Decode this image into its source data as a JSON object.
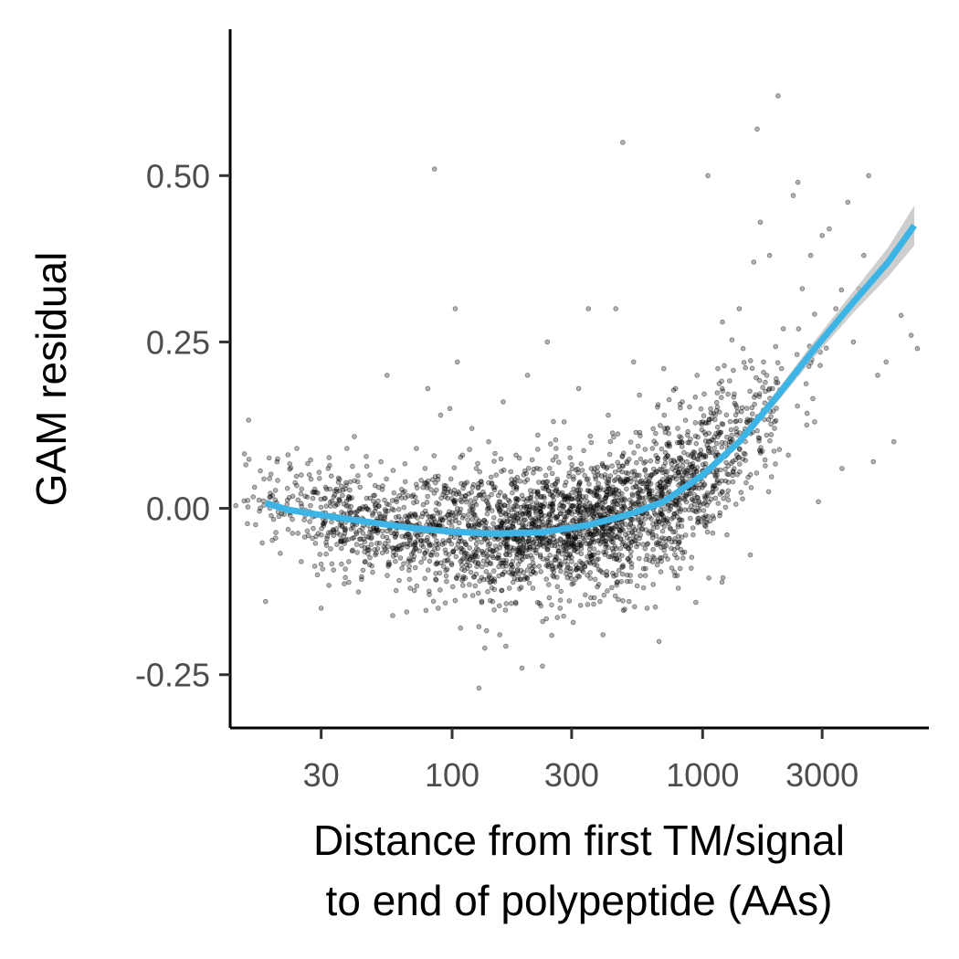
{
  "chart_data": {
    "type": "scatter",
    "title": "",
    "xlabel_line1": "Distance from first TM/signal",
    "xlabel_line2": "to end of polypeptide (AAs)",
    "ylabel": "GAM residual",
    "x_scale": "log10",
    "xlim": [
      13,
      8000
    ],
    "ylim": [
      -0.33,
      0.72
    ],
    "x_ticks": [
      30,
      100,
      300,
      1000,
      3000
    ],
    "x_tick_labels": [
      "30",
      "100",
      "300",
      "1000",
      "3000"
    ],
    "y_ticks": [
      -0.25,
      0,
      0.25,
      0.5
    ],
    "y_tick_labels": [
      "-0.25",
      "0.00",
      "0.25",
      "0.50"
    ],
    "grid": false,
    "legend": "none",
    "point_color": "#000000",
    "point_opacity": 0.3,
    "smooth_color": "#3cb4e5",
    "ribbon_color": "#bdbdbd",
    "points": [
      [
        18,
        -0.14
      ],
      [
        20,
        0.07
      ],
      [
        22,
        0.03
      ],
      [
        24,
        0.09
      ],
      [
        25,
        0.05
      ],
      [
        27,
        -0.02
      ],
      [
        29,
        -0.1
      ],
      [
        30,
        -0.15
      ],
      [
        32,
        0.06
      ],
      [
        34,
        0.02
      ],
      [
        36,
        -0.05
      ],
      [
        38,
        0.09
      ],
      [
        40,
        -0.02
      ],
      [
        42,
        0.04
      ],
      [
        45,
        -0.08
      ],
      [
        47,
        0.05
      ],
      [
        50,
        -0.03
      ],
      [
        52,
        0.07
      ],
      [
        55,
        0.2
      ],
      [
        58,
        -0.06
      ],
      [
        60,
        0.01
      ],
      [
        63,
        -0.09
      ],
      [
        65,
        0.04
      ],
      [
        68,
        -0.12
      ],
      [
        70,
        0.02
      ],
      [
        72,
        0.09
      ],
      [
        75,
        -0.04
      ],
      [
        78,
        0.06
      ],
      [
        80,
        0.18
      ],
      [
        82,
        -0.07
      ],
      [
        85,
        0.51
      ],
      [
        88,
        -0.15
      ],
      [
        90,
        0.14
      ],
      [
        93,
        0.03
      ],
      [
        95,
        -0.11
      ],
      [
        98,
        0.15
      ],
      [
        100,
        -0.02
      ],
      [
        103,
        0.3
      ],
      [
        105,
        0.22
      ],
      [
        108,
        -0.18
      ],
      [
        110,
        0.08
      ],
      [
        115,
        -0.09
      ],
      [
        120,
        0.12
      ],
      [
        125,
        0.06
      ],
      [
        128,
        -0.27
      ],
      [
        130,
        0.02
      ],
      [
        135,
        -0.21
      ],
      [
        140,
        0.1
      ],
      [
        145,
        -0.14
      ],
      [
        150,
        0.05
      ],
      [
        155,
        -0.19
      ],
      [
        160,
        0.16
      ],
      [
        170,
        -0.07
      ],
      [
        180,
        0.08
      ],
      [
        190,
        -0.24
      ],
      [
        200,
        0.2
      ],
      [
        210,
        -0.12
      ],
      [
        220,
        0.11
      ],
      [
        230,
        -0.17
      ],
      [
        240,
        0.25
      ],
      [
        250,
        -0.04
      ],
      [
        260,
        0.09
      ],
      [
        270,
        -0.15
      ],
      [
        280,
        0.13
      ],
      [
        300,
        -0.08
      ],
      [
        320,
        0.18
      ],
      [
        340,
        -0.13
      ],
      [
        350,
        0.3
      ],
      [
        370,
        0.06
      ],
      [
        400,
        -0.19
      ],
      [
        420,
        0.14
      ],
      [
        450,
        0.3
      ],
      [
        480,
        0.55
      ],
      [
        500,
        -0.11
      ],
      [
        530,
        0.22
      ],
      [
        560,
        0.17
      ],
      [
        600,
        -0.15
      ],
      [
        630,
        0.09
      ],
      [
        670,
        -0.2
      ],
      [
        700,
        0.21
      ],
      [
        720,
        0.12
      ],
      [
        750,
        -0.06
      ],
      [
        780,
        0.18
      ],
      [
        800,
        -0.12
      ],
      [
        830,
        0.16
      ],
      [
        870,
        0.11
      ],
      [
        900,
        -0.09
      ],
      [
        950,
        0.2
      ],
      [
        1000,
        0.13
      ],
      [
        1050,
        0.5
      ],
      [
        1100,
        0.03
      ],
      [
        1150,
        0.21
      ],
      [
        1200,
        0.28
      ],
      [
        1250,
        -0.04
      ],
      [
        1300,
        0.1
      ],
      [
        1400,
        0.3
      ],
      [
        1450,
        0.24
      ],
      [
        1500,
        0.13
      ],
      [
        1550,
        -0.07
      ],
      [
        1600,
        0.37
      ],
      [
        1650,
        0.57
      ],
      [
        1700,
        0.43
      ],
      [
        1750,
        0.22
      ],
      [
        1800,
        0.11
      ],
      [
        1850,
        0.38
      ],
      [
        1900,
        0.18
      ],
      [
        2000,
        0.62
      ],
      [
        2100,
        0.27
      ],
      [
        2200,
        0.08
      ],
      [
        2300,
        0.47
      ],
      [
        2400,
        0.49
      ],
      [
        2500,
        0.33
      ],
      [
        2600,
        0.22
      ],
      [
        2700,
        0.38
      ],
      [
        2800,
        0.13
      ],
      [
        2900,
        0.01
      ],
      [
        3000,
        0.41
      ],
      [
        3200,
        0.42
      ],
      [
        3400,
        0.3
      ],
      [
        3600,
        0.06
      ],
      [
        3800,
        0.46
      ],
      [
        4000,
        0.25
      ],
      [
        4200,
        0.33
      ],
      [
        4400,
        0.38
      ],
      [
        4600,
        0.5
      ],
      [
        4800,
        0.07
      ],
      [
        5000,
        0.2
      ],
      [
        5400,
        0.22
      ],
      [
        5800,
        0.1
      ],
      [
        6200,
        0.29
      ],
      [
        6800,
        0.26
      ],
      [
        7200,
        0.24
      ]
    ],
    "dense_clusters": [
      {
        "x_center": 350,
        "y_center": -0.03,
        "x_spread_log10": 0.32,
        "y_spread": 0.05,
        "count": 1400
      },
      {
        "x_center": 120,
        "y_center": -0.03,
        "x_spread_log10": 0.3,
        "y_spread": 0.045,
        "count": 700
      },
      {
        "x_center": 35,
        "y_center": -0.005,
        "x_spread_log10": 0.18,
        "y_spread": 0.035,
        "count": 300
      },
      {
        "x_center": 900,
        "y_center": 0.01,
        "x_spread_log10": 0.2,
        "y_spread": 0.06,
        "count": 450
      }
    ],
    "smooth": {
      "x": [
        18,
        22,
        30,
        45,
        70,
        100,
        150,
        230,
        350,
        500,
        700,
        1000,
        1400,
        2000,
        2800,
        4000,
        5500,
        7000
      ],
      "y": [
        0.008,
        -0.002,
        -0.01,
        -0.02,
        -0.03,
        -0.035,
        -0.038,
        -0.036,
        -0.025,
        -0.01,
        0.01,
        0.05,
        0.1,
        0.17,
        0.24,
        0.31,
        0.37,
        0.425
      ],
      "se": [
        0.006,
        0.004,
        0.003,
        0.002,
        0.002,
        0.002,
        0.002,
        0.002,
        0.002,
        0.002,
        0.003,
        0.004,
        0.006,
        0.009,
        0.012,
        0.016,
        0.022,
        0.03
      ]
    }
  }
}
